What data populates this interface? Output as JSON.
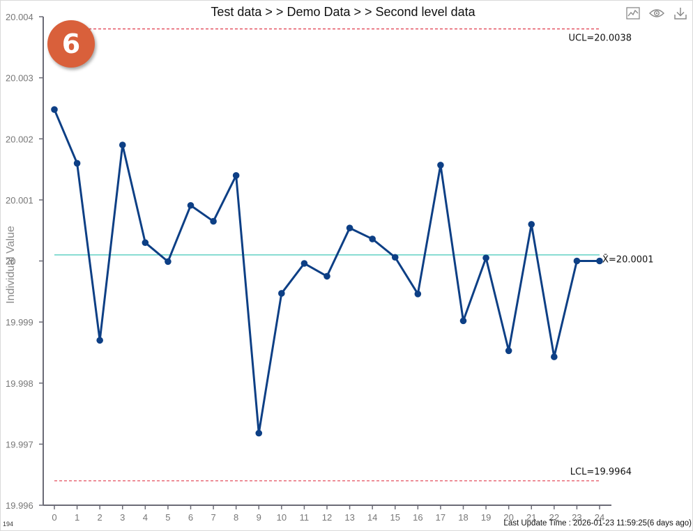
{
  "header": {
    "title": "Test data >  > Demo Data >  > Second level data"
  },
  "toolbar": {
    "icons": [
      "line-chart-icon",
      "eye-icon",
      "download-icon"
    ]
  },
  "badge": {
    "number": "6",
    "color": "#d9603b"
  },
  "footer": {
    "corner_text": "194",
    "update_time": "Last Update Time : 2026-01-23  11:59:25(6 days ago)"
  },
  "chart_data": {
    "type": "line",
    "ylabel": "Individual Value",
    "xlabel": "",
    "x": [
      0,
      1,
      2,
      3,
      4,
      5,
      6,
      7,
      8,
      9,
      10,
      11,
      12,
      13,
      14,
      15,
      16,
      17,
      18,
      19,
      20,
      21,
      22,
      23,
      24
    ],
    "series": [
      {
        "values": [
          20.00248,
          20.0016,
          19.9987,
          20.0019,
          20.0003,
          19.99999,
          20.00091,
          20.00065,
          20.0014,
          19.99718,
          19.99947,
          19.99996,
          19.99975,
          20.00054,
          20.00036,
          20.00006,
          19.99946,
          20.00157,
          19.99902,
          20.00005,
          19.99853,
          20.0006,
          19.99843,
          20.0,
          20.0
        ],
        "color": "#0d3f85"
      }
    ],
    "ylim": [
      19.996,
      20.004
    ],
    "yticks": [
      "19.996",
      "19.997",
      "19.998",
      "19.999",
      "20",
      "20.001",
      "20.002",
      "20.003",
      "20.004"
    ],
    "ytick_values": [
      19.996,
      19.997,
      19.998,
      19.999,
      20.0,
      20.001,
      20.002,
      20.003,
      20.004
    ],
    "control_lines": [
      {
        "name": "ucl",
        "value": 20.0038,
        "label": "UCL=20.0038",
        "color": "#e0394a",
        "style": "dashed"
      },
      {
        "name": "center",
        "value": 20.0001,
        "label": "X̄=20.0001",
        "color": "#63d2c4",
        "style": "solid"
      },
      {
        "name": "lcl",
        "value": 19.9964,
        "label": "LCL=19.9964",
        "color": "#e0394a",
        "style": "dashed"
      }
    ],
    "grid": false,
    "legend": "none"
  }
}
